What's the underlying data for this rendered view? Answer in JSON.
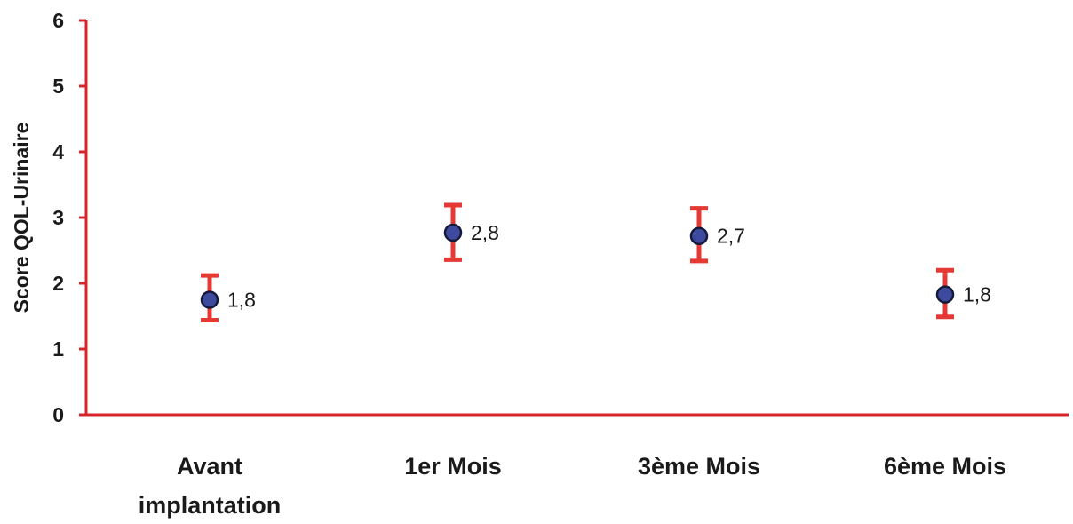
{
  "chart_data": {
    "type": "scatter",
    "title": "",
    "xlabel": "",
    "ylabel": "Score QOL-Urinaire",
    "ylim": [
      0,
      6
    ],
    "yticks": [
      "0",
      "1",
      "2",
      "3",
      "4",
      "5",
      "6"
    ],
    "categories": [
      [
        "Avant",
        "implantation"
      ],
      [
        "1er Mois"
      ],
      [
        "3ème Mois"
      ],
      [
        "6ème Mois"
      ]
    ],
    "series": [
      {
        "values": [
          1.75,
          2.77,
          2.72,
          1.83
        ],
        "error_low": [
          1.44,
          2.36,
          2.34,
          1.49
        ],
        "error_high": [
          2.12,
          3.19,
          3.14,
          2.2
        ],
        "data_labels": [
          "1,8",
          "2,8",
          "2,7",
          "1,8"
        ]
      }
    ],
    "grid": false,
    "legend": "none",
    "colors": {
      "axis": "#d9242a",
      "errorbar": "#e53935",
      "marker_fill": "#3d4a9e",
      "marker_stroke": "#161a3a",
      "text": "#1a1a1a"
    }
  }
}
